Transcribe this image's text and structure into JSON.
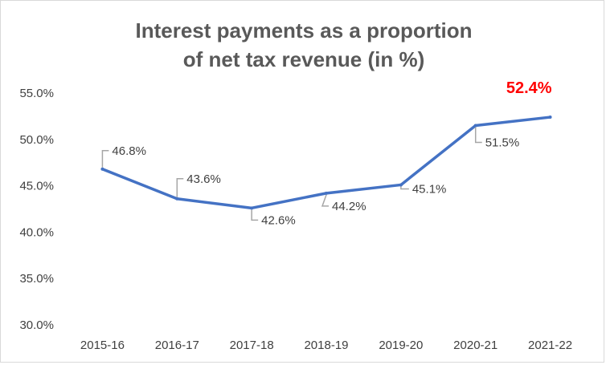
{
  "chart_data": {
    "type": "line",
    "title_lines": [
      "Interest payments as a proportion",
      "of net tax revenue (in %)"
    ],
    "categories": [
      "2015-16",
      "2016-17",
      "2017-18",
      "2018-19",
      "2019-20",
      "2020-21",
      "2021-22"
    ],
    "series": [
      {
        "values": [
          46.8,
          43.6,
          42.6,
          44.2,
          45.1,
          51.5,
          52.4
        ],
        "color": "#4472c4"
      }
    ],
    "data_labels": [
      "46.8%",
      "43.6%",
      "42.6%",
      "44.2%",
      "45.1%",
      "51.5%",
      "52.4%"
    ],
    "highlight": {
      "index": 6,
      "color": "#ff0000"
    },
    "yticks": [
      "30.0%",
      "35.0%",
      "40.0%",
      "45.0%",
      "50.0%",
      "55.0%"
    ],
    "ylim": [
      30,
      55
    ],
    "grid": false,
    "legend": "none"
  }
}
